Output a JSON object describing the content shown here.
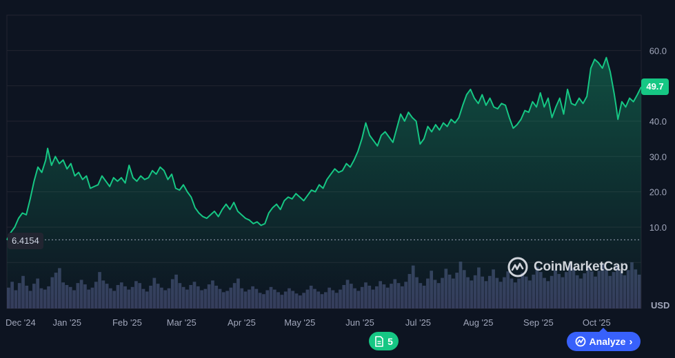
{
  "chart_data": {
    "type": "line",
    "currency_label": "USD",
    "last_value_label": "49.7",
    "start_value_label": "6.4154",
    "start_value": 6.4154,
    "ylim": [
      -13,
      70
    ],
    "y_ticks": [
      10,
      20,
      30,
      40,
      60
    ],
    "y_tick_labels": [
      "10.0",
      "20.0",
      "30.0",
      "40.0",
      "60.0"
    ],
    "x_tick_labels": [
      "Dec '24",
      "Jan '25",
      "Feb '25",
      "Mar '25",
      "Apr '25",
      "May '25",
      "Jun '25",
      "Jul '25",
      "Aug '25",
      "Sep '25",
      "Oct '25"
    ],
    "x_tick_days": [
      0,
      31,
      62,
      90,
      121,
      151,
      182,
      212,
      243,
      274,
      304
    ],
    "grid": true,
    "line_color": "#16c784",
    "series": [
      {
        "points": [
          [
            0,
            6.4
          ],
          [
            2,
            8.5
          ],
          [
            4,
            10
          ],
          [
            6,
            12.5
          ],
          [
            8,
            14
          ],
          [
            10,
            13.5
          ],
          [
            12,
            18
          ],
          [
            14,
            23
          ],
          [
            16,
            27
          ],
          [
            18,
            25.5
          ],
          [
            20,
            29
          ],
          [
            21,
            32.3
          ],
          [
            23,
            27.5
          ],
          [
            25,
            30
          ],
          [
            27,
            28
          ],
          [
            29,
            29
          ],
          [
            31,
            26.5
          ],
          [
            33,
            28
          ],
          [
            35,
            24.5
          ],
          [
            37,
            25.5
          ],
          [
            39,
            23.5
          ],
          [
            41,
            24.5
          ],
          [
            43,
            21
          ],
          [
            45,
            21.5
          ],
          [
            47,
            22
          ],
          [
            49,
            24.5
          ],
          [
            51,
            23
          ],
          [
            53,
            21.5
          ],
          [
            55,
            24
          ],
          [
            57,
            23
          ],
          [
            59,
            24
          ],
          [
            61,
            22.5
          ],
          [
            63,
            27.5
          ],
          [
            65,
            24
          ],
          [
            67,
            23
          ],
          [
            69,
            24.5
          ],
          [
            71,
            23.5
          ],
          [
            73,
            24
          ],
          [
            75,
            26
          ],
          [
            77,
            25
          ],
          [
            79,
            27
          ],
          [
            81,
            26
          ],
          [
            83,
            23.5
          ],
          [
            85,
            25
          ],
          [
            87,
            21
          ],
          [
            89,
            20.5
          ],
          [
            91,
            22
          ],
          [
            93,
            20
          ],
          [
            95,
            18.5
          ],
          [
            97,
            15.5
          ],
          [
            99,
            14
          ],
          [
            101,
            13
          ],
          [
            103,
            12.5
          ],
          [
            105,
            13.5
          ],
          [
            107,
            14.5
          ],
          [
            109,
            13
          ],
          [
            111,
            15
          ],
          [
            113,
            16.5
          ],
          [
            115,
            15
          ],
          [
            117,
            17
          ],
          [
            119,
            14.5
          ],
          [
            121,
            13.5
          ],
          [
            123,
            12.5
          ],
          [
            125,
            12
          ],
          [
            127,
            11
          ],
          [
            129,
            11.5
          ],
          [
            131,
            10.5
          ],
          [
            133,
            11
          ],
          [
            135,
            14
          ],
          [
            137,
            15.5
          ],
          [
            139,
            16.5
          ],
          [
            141,
            15
          ],
          [
            143,
            17.5
          ],
          [
            145,
            18.5
          ],
          [
            147,
            18
          ],
          [
            149,
            19.5
          ],
          [
            151,
            18.5
          ],
          [
            153,
            17.5
          ],
          [
            155,
            19
          ],
          [
            157,
            20.5
          ],
          [
            159,
            20
          ],
          [
            161,
            22
          ],
          [
            163,
            21
          ],
          [
            165,
            23.5
          ],
          [
            167,
            25
          ],
          [
            169,
            26.5
          ],
          [
            171,
            25.5
          ],
          [
            173,
            26
          ],
          [
            175,
            28
          ],
          [
            177,
            27
          ],
          [
            179,
            29
          ],
          [
            181,
            31.5
          ],
          [
            183,
            35
          ],
          [
            185,
            39.5
          ],
          [
            187,
            36
          ],
          [
            189,
            34.5
          ],
          [
            191,
            33
          ],
          [
            193,
            36
          ],
          [
            195,
            37
          ],
          [
            197,
            35.5
          ],
          [
            199,
            34
          ],
          [
            201,
            38
          ],
          [
            203,
            42
          ],
          [
            205,
            40
          ],
          [
            207,
            42.5
          ],
          [
            209,
            41
          ],
          [
            211,
            40
          ],
          [
            213,
            33.5
          ],
          [
            215,
            35
          ],
          [
            217,
            38.5
          ],
          [
            219,
            37
          ],
          [
            221,
            39
          ],
          [
            223,
            37.5
          ],
          [
            225,
            39.5
          ],
          [
            227,
            38.5
          ],
          [
            229,
            40.5
          ],
          [
            231,
            39.5
          ],
          [
            233,
            41
          ],
          [
            235,
            44.5
          ],
          [
            237,
            47.5
          ],
          [
            239,
            49
          ],
          [
            241,
            46.5
          ],
          [
            243,
            45
          ],
          [
            245,
            47.5
          ],
          [
            247,
            44.5
          ],
          [
            249,
            46.5
          ],
          [
            251,
            44
          ],
          [
            253,
            43.5
          ],
          [
            255,
            45
          ],
          [
            257,
            44.5
          ],
          [
            259,
            41
          ],
          [
            261,
            38
          ],
          [
            263,
            39
          ],
          [
            265,
            40.5
          ],
          [
            267,
            43
          ],
          [
            269,
            42.5
          ],
          [
            271,
            45.5
          ],
          [
            273,
            44
          ],
          [
            275,
            48
          ],
          [
            277,
            44
          ],
          [
            279,
            46.5
          ],
          [
            281,
            41
          ],
          [
            283,
            44
          ],
          [
            285,
            46.5
          ],
          [
            287,
            42
          ],
          [
            289,
            49
          ],
          [
            291,
            45
          ],
          [
            293,
            44.5
          ],
          [
            295,
            46.5
          ],
          [
            297,
            45
          ],
          [
            299,
            47
          ],
          [
            301,
            55
          ],
          [
            303,
            57.5
          ],
          [
            305,
            56.5
          ],
          [
            307,
            55
          ],
          [
            309,
            58
          ],
          [
            311,
            54
          ],
          [
            313,
            48
          ],
          [
            314,
            44.5
          ],
          [
            315,
            40.5
          ],
          [
            317,
            45.5
          ],
          [
            319,
            44
          ],
          [
            321,
            46.5
          ],
          [
            323,
            45.5
          ],
          [
            325,
            47.5
          ],
          [
            327,
            49.7
          ]
        ]
      }
    ],
    "volume_bars": [
      3.2,
      4.1,
      2.8,
      3.9,
      5.0,
      3.5,
      2.7,
      3.8,
      4.6,
      3.1,
      2.9,
      3.4,
      4.8,
      5.5,
      6.2,
      4.0,
      3.6,
      3.3,
      2.8,
      3.9,
      4.4,
      3.7,
      2.9,
      3.2,
      4.1,
      5.6,
      4.3,
      3.8,
      3.1,
      2.7,
      3.6,
      4.0,
      3.4,
      2.9,
      3.3,
      4.2,
      3.9,
      3.0,
      2.6,
      3.5,
      4.7,
      3.8,
      3.2,
      2.8,
      3.1,
      4.5,
      5.2,
      3.9,
      3.3,
      2.9,
      3.6,
      4.1,
      3.4,
      2.8,
      3.0,
      3.7,
      4.3,
      3.5,
      3.0,
      2.5,
      2.7,
      3.2,
      3.9,
      4.6,
      3.1,
      2.6,
      2.9,
      3.4,
      3.0,
      2.4,
      2.2,
      2.8,
      3.3,
      2.9,
      2.5,
      2.1,
      2.6,
      3.1,
      2.7,
      2.3,
      2.0,
      2.4,
      2.9,
      3.5,
      3.0,
      2.6,
      2.2,
      2.5,
      3.2,
      2.8,
      2.4,
      2.9,
      3.6,
      4.4,
      3.8,
      3.1,
      2.7,
      3.3,
      4.0,
      3.5,
      2.9,
      3.4,
      4.2,
      3.7,
      3.2,
      3.8,
      4.5,
      3.9,
      3.4,
      4.1,
      5.3,
      6.6,
      4.8,
      3.9,
      3.5,
      4.6,
      5.8,
      4.4,
      3.9,
      4.7,
      6.1,
      5.2,
      4.6,
      5.5,
      7.2,
      5.9,
      4.8,
      4.3,
      5.1,
      6.3,
      4.9,
      4.2,
      5.0,
      6.0,
      4.7,
      4.1,
      4.8,
      5.7,
      4.6,
      4.0,
      4.6,
      5.5,
      4.9,
      4.3,
      5.2,
      6.4,
      5.6,
      4.7,
      4.2,
      5.0,
      5.9,
      5.3,
      4.8,
      5.6,
      7.0,
      6.2,
      5.1,
      4.6,
      5.4,
      6.5,
      5.7,
      4.9,
      5.8,
      6.9,
      5.9,
      5.0,
      5.6,
      6.7,
      5.8,
      5.1,
      5.9,
      7.1,
      6.0,
      5.2
    ]
  },
  "watermark": {
    "brand": "CoinMarketCap"
  },
  "news_badge": {
    "count": "5"
  },
  "analyze_button": {
    "label": "Analyze"
  },
  "colors": {
    "background": "#0d1421",
    "grid": "#222531",
    "line": "#16c784",
    "volume": "#3d4466",
    "accent": "#3861fb"
  }
}
